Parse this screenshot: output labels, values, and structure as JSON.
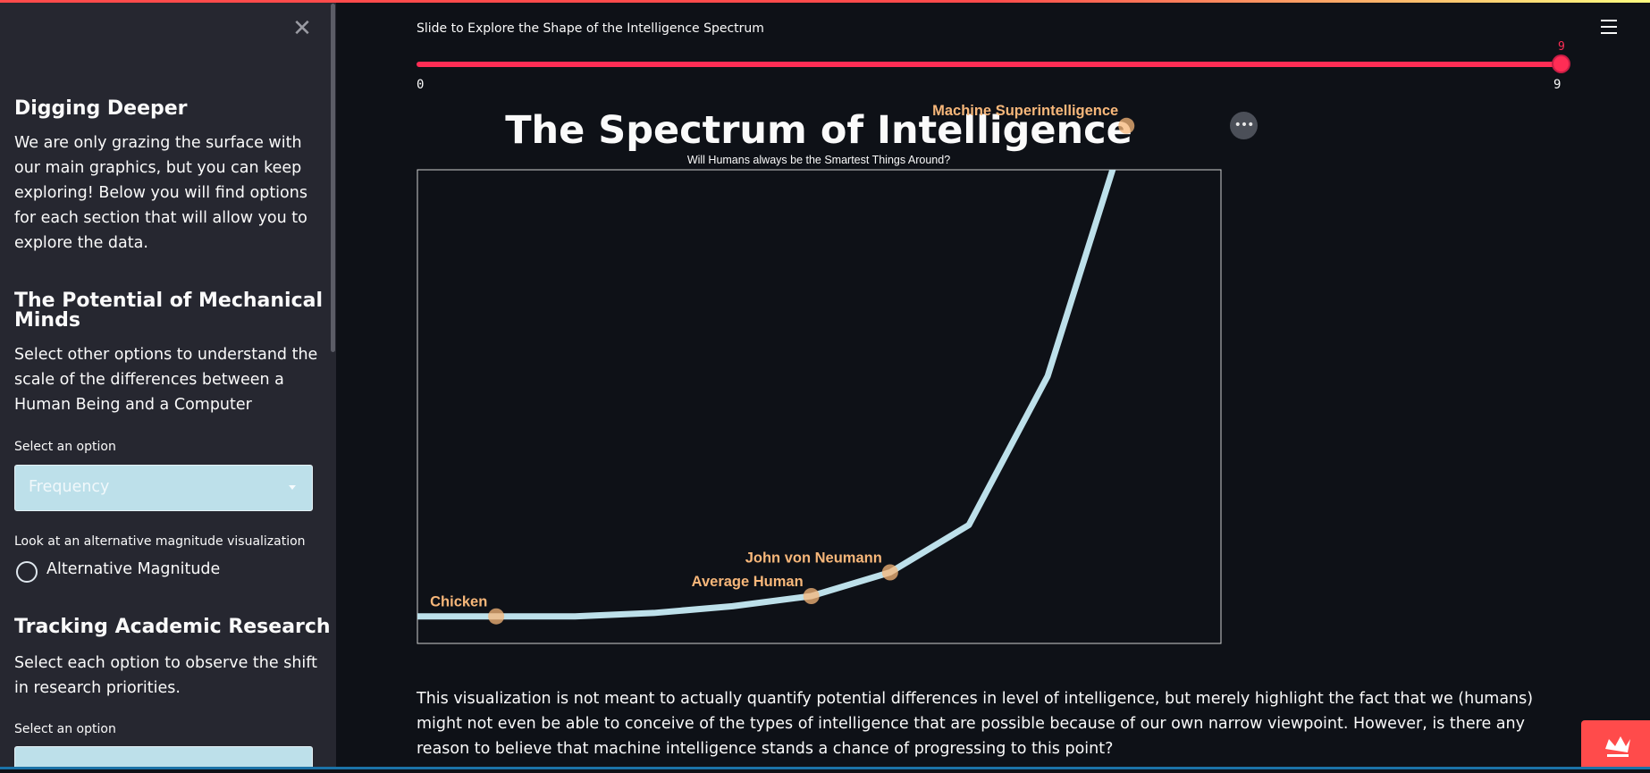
{
  "sidebar": {
    "close_glyph": "✕",
    "section1": {
      "title": "Digging Deeper",
      "body": "We are only grazing the surface with our main graphics, but you can keep exploring! Below you will find options for each section that will allow you to explore the data."
    },
    "section2": {
      "title_line1": "The Potential of Mechanical",
      "title_line2": "Minds",
      "body": "Select other options to understand the scale of the differences between a Human Being and a Computer",
      "select_label": "Select an option",
      "select_value": "Frequency",
      "alt_label": "Look at an alternative magnitude visualization",
      "radio_label": "Alternative Magnitude"
    },
    "section3": {
      "title": "Tracking Academic Research",
      "body": "Select each option to observe the shift in research priorities.",
      "select_label": "Select an option"
    }
  },
  "slider": {
    "label": "Slide to Explore the Shape of the Intelligence Spectrum",
    "min": "0",
    "max": "9",
    "value": "9"
  },
  "chart_data": {
    "type": "line",
    "title": "The Spectrum of Intelligence",
    "subtitle": "Will Humans always be the Smartest Things Around?",
    "line_color": "#bde0ea",
    "marker_color": "#f7b77a",
    "label_color": "#f7b77a",
    "series": [
      {
        "x": [
          0,
          1,
          2,
          3,
          4,
          5,
          6,
          7,
          8,
          9,
          9.1
        ],
        "y": [
          0,
          0,
          0,
          0.1,
          0.3,
          0.6,
          1.3,
          2.7,
          7.1,
          14.5,
          16.2
        ]
      }
    ],
    "points": [
      {
        "label": "Chicken",
        "x": 1,
        "y": 0
      },
      {
        "label": "Average Human",
        "x": 5,
        "y": 0.6
      },
      {
        "label": "John von Neumann",
        "x": 6,
        "y": 1.3
      },
      {
        "label": "Machine Superintelligence",
        "x": 9,
        "y": 14.5
      }
    ]
  },
  "body_text": "This visualization is not meant to actually quantify potential differences in level of intelligence, but merely highlight the fact that we (humans) might not even be able to conceive of the types of intelligence that are possible because of our own narrow viewpoint. However, is there any reason to believe that machine intelligence stands a chance of progressing to this point?",
  "icons": {
    "menu": "hamburger-icon",
    "chart_menu": "more-dots-icon",
    "badge": "crown-icon"
  }
}
